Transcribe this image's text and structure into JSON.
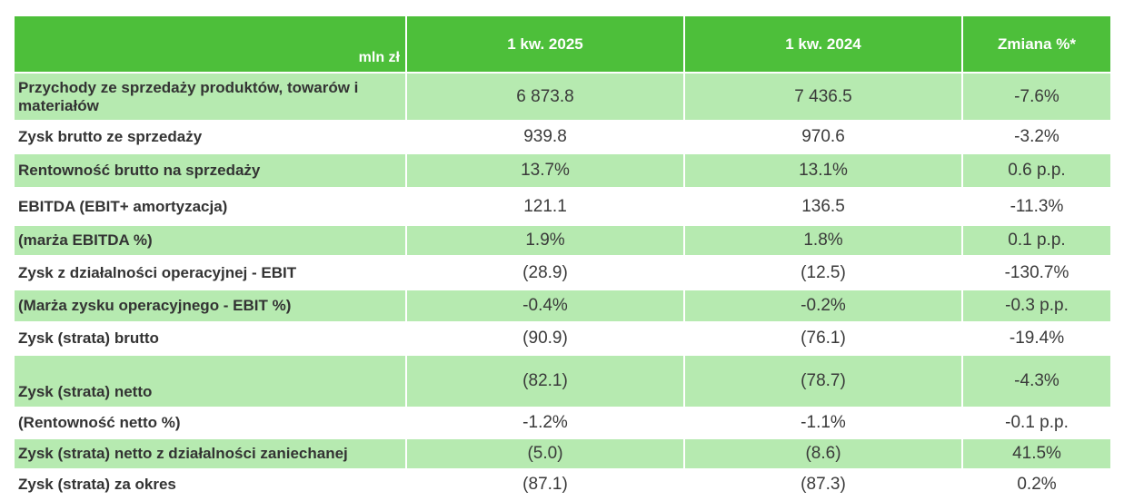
{
  "header": {
    "unit": "mln zł",
    "col1": "1 kw. 2025",
    "col2": "1 kw. 2024",
    "col3": "Zmiana %*"
  },
  "rows": [
    {
      "label": "Przychody ze sprzedaży produktów, towarów i materiałów",
      "v1": "6 873.8",
      "v2": "7 436.5",
      "v3": "-7.6%"
    },
    {
      "label": "Zysk brutto ze sprzedaży",
      "v1": "939.8",
      "v2": "970.6",
      "v3": "-3.2%"
    },
    {
      "label": "Rentowność brutto na sprzedaży",
      "v1": "13.7%",
      "v2": "13.1%",
      "v3": "0.6 p.p."
    },
    {
      "label": "EBITDA (EBIT+ amortyzacja)",
      "v1": "121.1",
      "v2": "136.5",
      "v3": "-11.3%"
    },
    {
      "label": "(marża EBITDA %)",
      "v1": "1.9%",
      "v2": "1.8%",
      "v3": "0.1 p.p."
    },
    {
      "label": "Zysk z działalności operacyjnej - EBIT",
      "v1": "(28.9)",
      "v2": "(12.5)",
      "v3": "-130.7%"
    },
    {
      "label": "(Marża zysku operacyjnego - EBIT %)",
      "v1": "-0.4%",
      "v2": "-0.2%",
      "v3": "-0.3 p.p."
    },
    {
      "label": "Zysk (strata) brutto",
      "v1": "(90.9)",
      "v2": "(76.1)",
      "v3": "-19.4%"
    },
    {
      "label": "Zysk (strata) netto",
      "v1": "(82.1)",
      "v2": "(78.7)",
      "v3": "-4.3%"
    },
    {
      "label": "(Rentowność netto %)",
      "v1": "-1.2%",
      "v2": "-1.1%",
      "v3": "-0.1 p.p."
    },
    {
      "label": "Zysk (strata) netto z działalności zaniechanej",
      "v1": "(5.0)",
      "v2": "(8.6)",
      "v3": "41.5%"
    },
    {
      "label": "Zysk (strata) za okres",
      "v1": "(87.1)",
      "v2": "(87.3)",
      "v3": "0.2%"
    }
  ]
}
